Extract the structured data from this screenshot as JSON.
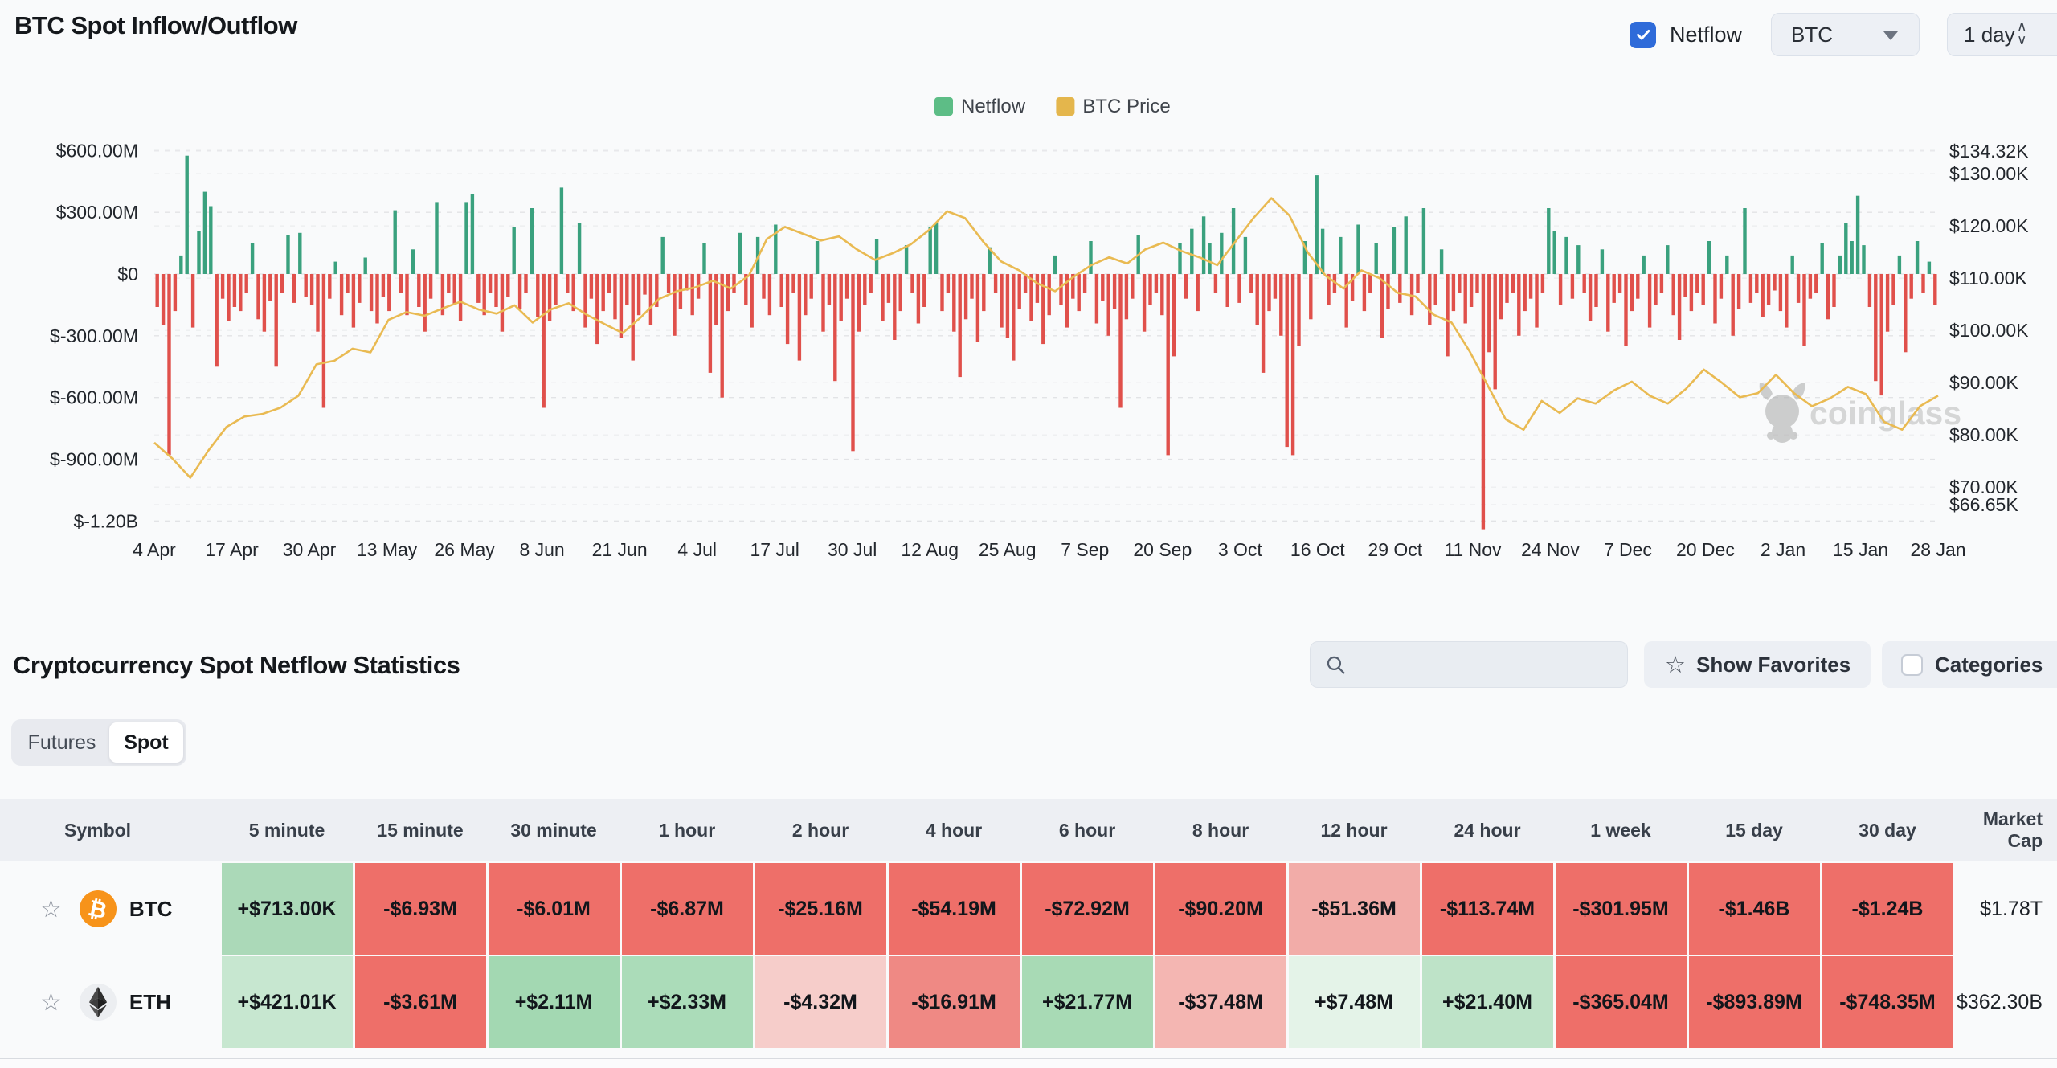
{
  "header": {
    "title": "BTC Spot Inflow/Outflow",
    "netflow_label": "Netflow",
    "symbol_select": "BTC",
    "interval_select": "1 day"
  },
  "chart_data": {
    "type": "bar",
    "title": "BTC Spot Inflow/Outflow",
    "legend": [
      {
        "label": "Netflow",
        "color": "#5dbd86"
      },
      {
        "label": "BTC Price",
        "color": "#e4b64c"
      }
    ],
    "legend_position": "top-center",
    "grid": "dashed-horizontal",
    "left_axis": {
      "ticks": [
        "$600.00M",
        "$300.00M",
        "$0",
        "$-300.00M",
        "$-600.00M",
        "$-900.00M",
        "$-1.20B"
      ],
      "values": [
        600,
        300,
        0,
        -300,
        -600,
        -900,
        -1200
      ],
      "unit": "USD millions"
    },
    "right_axis": {
      "ticks": [
        "$134.32K",
        "$130.00K",
        "$120.00K",
        "$110.00K",
        "$100.00K",
        "$90.00K",
        "$80.00K",
        "$70.00K",
        "$66.65K"
      ],
      "values": [
        134.32,
        130,
        120,
        110,
        100,
        90,
        80,
        70,
        66.65
      ],
      "unit": "USD thousands"
    },
    "x_labels": [
      "4 Apr",
      "17 Apr",
      "30 Apr",
      "13 May",
      "26 May",
      "8 Jun",
      "21 Jun",
      "4 Jul",
      "17 Jul",
      "30 Jul",
      "12 Aug",
      "25 Aug",
      "7 Sep",
      "20 Sep",
      "3 Oct",
      "16 Oct",
      "29 Oct",
      "11 Nov",
      "24 Nov",
      "7 Dec",
      "20 Dec",
      "2 Jan",
      "15 Jan",
      "28 Jan"
    ],
    "bar_colors": {
      "positive": "#3aa17e",
      "negative": "#e0504b"
    },
    "line_color": "#e9ba52",
    "watermark": "coinglass",
    "netflow_unit": "$M",
    "netflow": [
      -160,
      -250,
      -880,
      -180,
      90,
      575,
      -260,
      210,
      400,
      330,
      -450,
      -120,
      -230,
      -160,
      -180,
      -90,
      150,
      -220,
      -280,
      -130,
      -450,
      -90,
      190,
      -140,
      200,
      -110,
      -150,
      -280,
      -650,
      -120,
      60,
      -200,
      -90,
      -260,
      -140,
      80,
      -180,
      -240,
      -110,
      -180,
      310,
      -90,
      -200,
      120,
      -160,
      -280,
      -120,
      350,
      -200,
      -90,
      -150,
      -230,
      350,
      390,
      -140,
      -200,
      -90,
      -160,
      -280,
      -110,
      230,
      -170,
      -90,
      320,
      -210,
      -650,
      -230,
      -150,
      420,
      -90,
      -180,
      250,
      -260,
      -120,
      -340,
      -180,
      -90,
      -220,
      -310,
      -150,
      -420,
      -200,
      -100,
      -250,
      -160,
      180,
      -90,
      -300,
      -170,
      -80,
      -200,
      -120,
      150,
      -480,
      -250,
      -600,
      -180,
      -90,
      200,
      -150,
      -260,
      180,
      -120,
      -200,
      240,
      -160,
      -340,
      -90,
      -420,
      -200,
      -120,
      160,
      -280,
      -150,
      -520,
      -230,
      -120,
      -860,
      -280,
      -150,
      -90,
      170,
      -230,
      -140,
      -320,
      -180,
      140,
      -90,
      -240,
      -160,
      230,
      250,
      -180,
      -90,
      -280,
      -500,
      -220,
      -120,
      -330,
      -180,
      130,
      -90,
      -260,
      -310,
      -420,
      -170,
      -90,
      -230,
      -140,
      -340,
      -200,
      90,
      -150,
      -260,
      -120,
      -180,
      -90,
      160,
      -240,
      -130,
      -300,
      -170,
      -650,
      -220,
      -120,
      190,
      -280,
      -150,
      -90,
      -200,
      -880,
      -400,
      150,
      -120,
      220,
      -180,
      280,
      150,
      -90,
      200,
      -160,
      320,
      -140,
      180,
      -90,
      -250,
      -480,
      -180,
      -120,
      -300,
      -840,
      -880,
      -350,
      160,
      -220,
      480,
      220,
      -150,
      -90,
      180,
      -260,
      -130,
      240,
      -180,
      -90,
      150,
      -310,
      -170,
      230,
      -140,
      280,
      -200,
      -90,
      320,
      -250,
      -150,
      120,
      -400,
      -180,
      -90,
      -240,
      -160,
      -90,
      -1240,
      -380,
      -560,
      -220,
      -140,
      -90,
      -300,
      -180,
      -120,
      -260,
      -90,
      320,
      210,
      -150,
      180,
      -120,
      140,
      -90,
      -230,
      -160,
      120,
      -280,
      -140,
      -90,
      -350,
      -180,
      -120,
      90,
      -260,
      -150,
      -90,
      140,
      -200,
      -320,
      -110,
      -180,
      -90,
      -150,
      160,
      -240,
      -120,
      90,
      -300,
      -170,
      320,
      -140,
      -90,
      -210,
      -150,
      -80,
      -180,
      -260,
      90,
      -140,
      -350,
      -120,
      -90,
      150,
      -220,
      -160,
      90,
      250,
      160,
      380,
      140,
      -160,
      -520,
      -590,
      -280,
      -150,
      90,
      -380,
      -120,
      160,
      -90,
      60,
      -150
    ],
    "price_unit": "$K",
    "price": [
      78.5,
      75.5,
      71.8,
      77.0,
      81.5,
      83.5,
      84.0,
      85.2,
      87.5,
      93.5,
      94.2,
      96.5,
      95.8,
      102.0,
      103.5,
      102.8,
      104.2,
      105.5,
      104.0,
      103.2,
      104.8,
      101.5,
      104.0,
      105.2,
      103.0,
      101.2,
      99.5,
      102.5,
      106.0,
      107.5,
      108.2,
      109.5,
      108.0,
      110.5,
      117.5,
      119.8,
      118.5,
      117.2,
      118.0,
      115.5,
      113.5,
      114.8,
      116.5,
      119.2,
      122.8,
      121.5,
      117.0,
      113.2,
      111.5,
      109.0,
      107.5,
      110.2,
      112.5,
      114.0,
      112.8,
      115.5,
      116.8,
      115.2,
      114.0,
      112.5,
      117.0,
      121.5,
      125.3,
      122.0,
      115.0,
      110.5,
      108.0,
      111.5,
      110.0,
      107.2,
      106.5,
      103.0,
      101.5,
      96.0,
      89.5,
      83.0,
      81.0,
      86.5,
      84.2,
      87.0,
      86.0,
      88.5,
      90.2,
      87.5,
      86.0,
      88.8,
      92.5,
      90.0,
      87.2,
      88.0,
      91.5,
      88.0,
      85.5,
      87.0,
      89.2,
      87.8,
      82.5,
      81.0,
      85.5,
      87.5
    ]
  },
  "stats": {
    "heading": "Cryptocurrency Spot Netflow Statistics",
    "search_value": "",
    "show_favorites_label": "Show Favorites",
    "categories_label": "Categories",
    "tabs": [
      {
        "label": "Futures",
        "active": false
      },
      {
        "label": "Spot",
        "active": true
      }
    ],
    "columns": [
      "Symbol",
      "5 minute",
      "15 minute",
      "30 minute",
      "1 hour",
      "2 hour",
      "4 hour",
      "6 hour",
      "8 hour",
      "12 hour",
      "24 hour",
      "1 week",
      "15 day",
      "30 day",
      "Market Cap"
    ],
    "rows": [
      {
        "symbol": "BTC",
        "market_cap": "$1.78T",
        "cells": [
          {
            "text": "+$713.00K",
            "bg": "#abd9b8"
          },
          {
            "text": "-$6.93M",
            "bg": "#ee6f69"
          },
          {
            "text": "-$6.01M",
            "bg": "#ee6f69"
          },
          {
            "text": "-$6.87M",
            "bg": "#ee6f69"
          },
          {
            "text": "-$25.16M",
            "bg": "#ee6f69"
          },
          {
            "text": "-$54.19M",
            "bg": "#ee6f69"
          },
          {
            "text": "-$72.92M",
            "bg": "#ee6f69"
          },
          {
            "text": "-$90.20M",
            "bg": "#ee6f69"
          },
          {
            "text": "-$51.36M",
            "bg": "#f2aca8"
          },
          {
            "text": "-$113.74M",
            "bg": "#ee6f69"
          },
          {
            "text": "-$301.95M",
            "bg": "#ee6f69"
          },
          {
            "text": "-$1.46B",
            "bg": "#ee6f69"
          },
          {
            "text": "-$1.24B",
            "bg": "#ee6f69"
          }
        ]
      },
      {
        "symbol": "ETH",
        "market_cap": "$362.30B",
        "cells": [
          {
            "text": "+$421.01K",
            "bg": "#c7e7d0"
          },
          {
            "text": "-$3.61M",
            "bg": "#ee6f69"
          },
          {
            "text": "+$2.11M",
            "bg": "#a3d8b2"
          },
          {
            "text": "+$2.33M",
            "bg": "#abdcb9"
          },
          {
            "text": "-$4.32M",
            "bg": "#f6cdca"
          },
          {
            "text": "-$16.91M",
            "bg": "#ef8984"
          },
          {
            "text": "+$21.77M",
            "bg": "#a8dab5"
          },
          {
            "text": "-$37.48M",
            "bg": "#f4b6b2"
          },
          {
            "text": "+$7.48M",
            "bg": "#e4f3e8"
          },
          {
            "text": "+$21.40M",
            "bg": "#bee3c8"
          },
          {
            "text": "-$365.04M",
            "bg": "#ee6f69"
          },
          {
            "text": "-$893.89M",
            "bg": "#ee6f69"
          },
          {
            "text": "-$748.35M",
            "bg": "#ee6f69"
          }
        ]
      }
    ]
  }
}
